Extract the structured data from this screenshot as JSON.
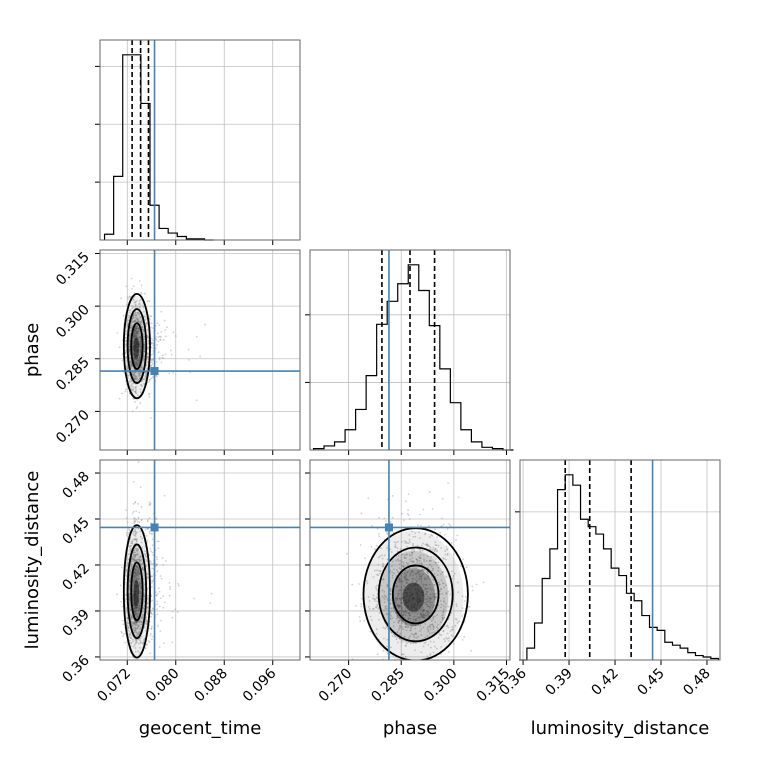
{
  "figure_type": "corner-plot",
  "colors": {
    "truth": "#4682b4",
    "hist": "#000000",
    "grid": "#c0c0c0",
    "points": "#9a9a9a"
  },
  "chart_data": {
    "type": "corner",
    "parameters": [
      {
        "name": "geocent_time",
        "label": "geocent_time",
        "range": [
          0.0675,
          0.1005
        ],
        "ticks": [
          "0.072",
          "0.080",
          "0.088",
          "0.096"
        ],
        "truth": 0.0765,
        "quantiles": [
          0.0728,
          0.0742,
          0.0755
        ]
      },
      {
        "name": "phase",
        "label": "phase",
        "range": [
          0.259,
          0.316
        ],
        "ticks": [
          "0.270",
          "0.285",
          "0.300",
          "0.315"
        ],
        "truth": 0.2815,
        "quantiles": [
          0.2795,
          0.2875,
          0.2945
        ]
      },
      {
        "name": "luminosity_distance",
        "label": "luminosity_distance",
        "range": [
          0.358,
          0.4885
        ],
        "ticks": [
          "0.36",
          "0.39",
          "0.42",
          "0.45",
          "0.48"
        ],
        "truth": 0.4445,
        "quantiles": [
          0.3875,
          0.4035,
          0.4305
        ]
      }
    ],
    "marginals": [
      {
        "param": "geocent_time",
        "x": [
          0.069,
          0.0705,
          0.072,
          0.0735,
          0.075,
          0.0765,
          0.078,
          0.0795,
          0.081,
          0.0825,
          0.084,
          0.0855
        ],
        "counts": [
          5,
          55,
          160,
          160,
          118,
          30,
          10,
          6,
          3,
          1,
          1,
          0
        ]
      },
      {
        "param": "phase",
        "x": [
          0.2615,
          0.2645,
          0.2675,
          0.2705,
          0.2735,
          0.2765,
          0.2795,
          0.2825,
          0.2855,
          0.2885,
          0.2915,
          0.2945,
          0.2975,
          0.3005,
          0.3035,
          0.3065,
          0.3095,
          0.3125,
          0.3155
        ],
        "counts": [
          1,
          3,
          6,
          15,
          30,
          55,
          93,
          110,
          123,
          137,
          118,
          92,
          60,
          35,
          15,
          6,
          2,
          1,
          0
        ]
      },
      {
        "param": "luminosity_distance",
        "x": [
          0.36,
          0.365,
          0.37,
          0.375,
          0.38,
          0.385,
          0.39,
          0.395,
          0.4,
          0.405,
          0.41,
          0.415,
          0.42,
          0.425,
          0.43,
          0.435,
          0.44,
          0.445,
          0.45,
          0.455,
          0.46,
          0.465,
          0.47,
          0.475,
          0.48,
          0.485
        ],
        "counts": [
          0,
          8,
          25,
          55,
          75,
          115,
          125,
          118,
          95,
          90,
          85,
          75,
          62,
          57,
          45,
          40,
          30,
          22,
          20,
          12,
          10,
          8,
          5,
          3,
          2,
          1
        ]
      }
    ],
    "joint": [
      {
        "x": "geocent_time",
        "y": "phase",
        "center": [
          0.0735,
          0.288
        ],
        "spread": [
          0.0009,
          0.0062
        ]
      },
      {
        "x": "geocent_time",
        "y": "luminosity_distance",
        "center": [
          0.0735,
          0.401
        ],
        "spread": [
          0.0009,
          0.018
        ]
      },
      {
        "x": "phase",
        "y": "luminosity_distance",
        "center": [
          0.2885,
          0.399
        ],
        "spread": [
          0.0062,
          0.018
        ]
      }
    ]
  }
}
